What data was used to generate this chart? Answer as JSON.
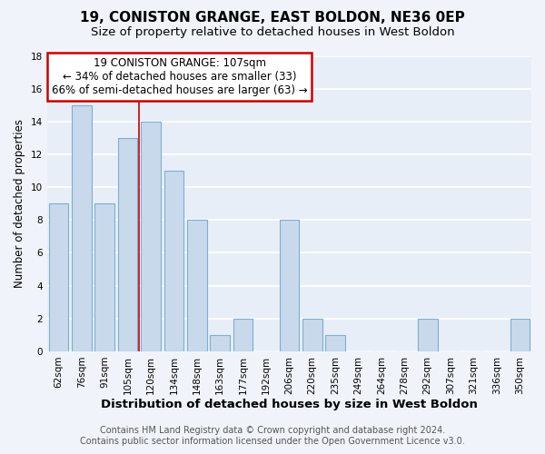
{
  "title": "19, CONISTON GRANGE, EAST BOLDON, NE36 0EP",
  "subtitle": "Size of property relative to detached houses in West Boldon",
  "xlabel": "Distribution of detached houses by size in West Boldon",
  "ylabel": "Number of detached properties",
  "bar_labels": [
    "62sqm",
    "76sqm",
    "91sqm",
    "105sqm",
    "120sqm",
    "134sqm",
    "148sqm",
    "163sqm",
    "177sqm",
    "192sqm",
    "206sqm",
    "220sqm",
    "235sqm",
    "249sqm",
    "264sqm",
    "278sqm",
    "292sqm",
    "307sqm",
    "321sqm",
    "336sqm",
    "350sqm"
  ],
  "bar_values": [
    9,
    15,
    9,
    13,
    14,
    11,
    8,
    1,
    2,
    0,
    8,
    2,
    1,
    0,
    0,
    0,
    2,
    0,
    0,
    0,
    2
  ],
  "bar_color": "#c9d9ec",
  "bar_edge_color": "#7bafd4",
  "ylim": [
    0,
    18
  ],
  "yticks": [
    0,
    2,
    4,
    6,
    8,
    10,
    12,
    14,
    16,
    18
  ],
  "annotation_title": "19 CONISTON GRANGE: 107sqm",
  "annotation_line1": "← 34% of detached houses are smaller (33)",
  "annotation_line2": "66% of semi-detached houses are larger (63) →",
  "annotation_box_color": "#ffffff",
  "annotation_box_edge_color": "#cc0000",
  "property_line_color": "#cc0000",
  "property_bar_index": 3,
  "footer_line1": "Contains HM Land Registry data © Crown copyright and database right 2024.",
  "footer_line2": "Contains public sector information licensed under the Open Government Licence v3.0.",
  "background_color": "#f0f4fa",
  "plot_bg_color": "#e8eef7",
  "grid_color": "#ffffff",
  "title_fontsize": 11,
  "subtitle_fontsize": 9.5,
  "xlabel_fontsize": 9.5,
  "ylabel_fontsize": 8.5,
  "tick_fontsize": 7.5,
  "annotation_fontsize": 8.5,
  "footer_fontsize": 7.0
}
